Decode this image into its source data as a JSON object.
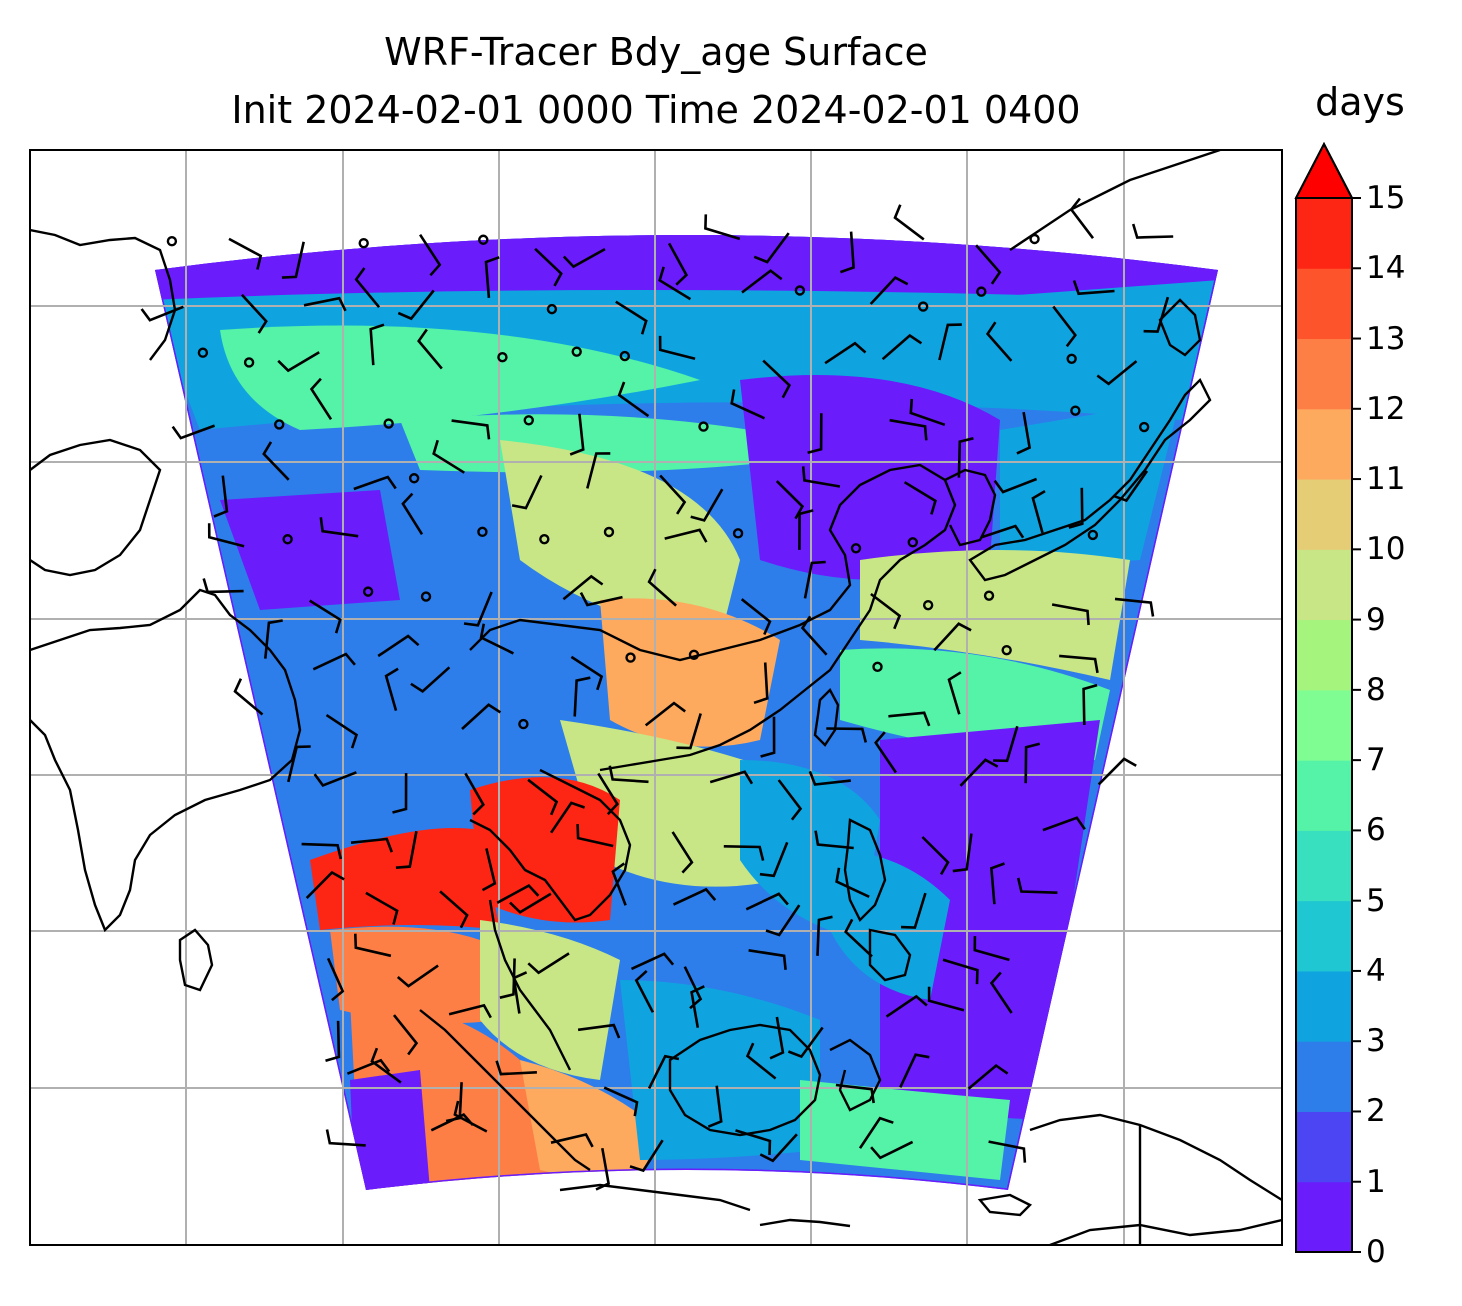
{
  "title": {
    "line1": "WRF-Tracer Bdy_age Surface",
    "line2": "Init 2024-02-01 0000 Time 2024-02-01 0400"
  },
  "colorbar": {
    "unit": "days",
    "ticks": [
      "0",
      "1",
      "2",
      "3",
      "4",
      "5",
      "6",
      "7",
      "8",
      "9",
      "10",
      "11",
      "12",
      "13",
      "14",
      "15"
    ],
    "extend": "max",
    "colors": [
      "#6a1cfb",
      "#4c45f4",
      "#2d7eea",
      "#0fa4e0",
      "#1fc7d3",
      "#38e0c0",
      "#54f3a7",
      "#80fd92",
      "#a4f47d",
      "#c8e686",
      "#e5cd75",
      "#fdaa5e",
      "#fe7f46",
      "#fe542c",
      "#fd2614"
    ],
    "extend_color": "#ff0000"
  },
  "map": {
    "gridlines": true,
    "field_colors": {
      "background": "#ffffff",
      "boundary_region": "#2d7eea",
      "north_band": "#0fa4e0",
      "north_band_light": "#54f3a7",
      "central_band": "#c8e686",
      "central_warm": "#fdaa5e",
      "southwest_hot": "#fd2614",
      "south_warm": "#fe7f46",
      "east_low": "#6a1cfb",
      "coast_line": "#000000"
    }
  }
}
